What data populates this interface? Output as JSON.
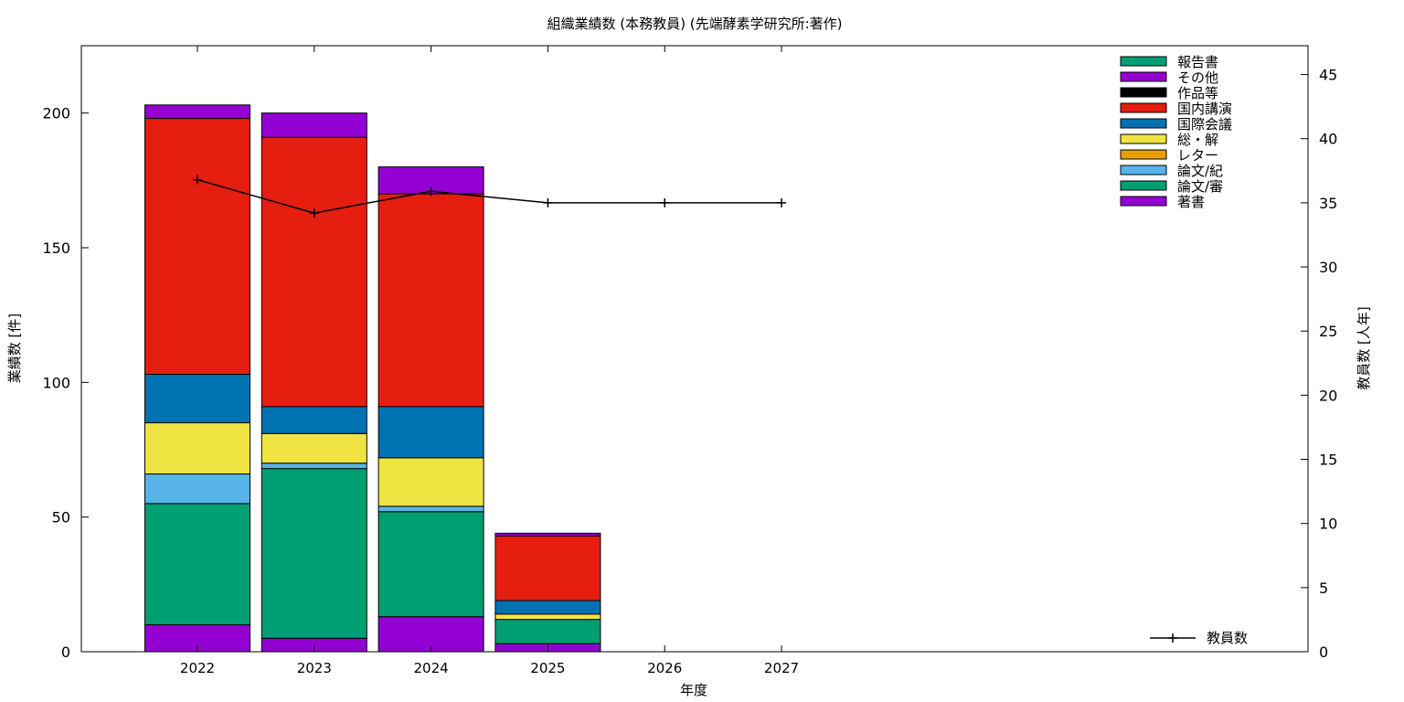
{
  "chart_data": {
    "type": "bar",
    "title": "組織業績数 (本務教員) (先端酵素学研究所:著作)",
    "xlabel": "年度",
    "ylabel": "業績数 [件]",
    "y2label": "教員数 [人年]",
    "categories": [
      "2022",
      "2023",
      "2024",
      "2025",
      "2026",
      "2027"
    ],
    "ylim": [
      0,
      225
    ],
    "yticks": [
      0,
      50,
      100,
      150,
      200
    ],
    "y2lim": [
      0,
      47.25
    ],
    "y2ticks": [
      0,
      5,
      10,
      15,
      20,
      25,
      30,
      35,
      40,
      45
    ],
    "legend_position": "top-right",
    "stacked_series": [
      {
        "name": "著書",
        "color": "#9400d3",
        "values": [
          10,
          5,
          13,
          3,
          0,
          0
        ]
      },
      {
        "name": "論文/審",
        "color": "#009e73",
        "values": [
          45,
          63,
          39,
          9,
          0,
          0
        ]
      },
      {
        "name": "論文/紀",
        "color": "#56b4e9",
        "values": [
          11,
          2,
          2,
          0,
          0,
          0
        ]
      },
      {
        "name": "レター",
        "color": "#e69f00",
        "values": [
          0,
          0,
          0,
          0,
          0,
          0
        ]
      },
      {
        "name": "総・解",
        "color": "#f0e442",
        "values": [
          19,
          11,
          18,
          2,
          0,
          0
        ]
      },
      {
        "name": "国際会議",
        "color": "#0072b2",
        "values": [
          18,
          10,
          19,
          5,
          0,
          0
        ]
      },
      {
        "name": "国内講演",
        "color": "#e51e10",
        "values": [
          95,
          100,
          79,
          24,
          0,
          0
        ]
      },
      {
        "name": "作品等",
        "color": "#000000",
        "values": [
          0,
          0,
          0,
          0,
          0,
          0
        ]
      },
      {
        "name": "その他",
        "color": "#9400d3",
        "values": [
          5,
          9,
          10,
          1,
          0,
          0
        ]
      },
      {
        "name": "報告書",
        "color": "#009e73",
        "values": [
          0,
          0,
          0,
          0,
          0,
          0
        ]
      }
    ],
    "line_series": {
      "name": "教員数",
      "color": "#000000",
      "axis": "right",
      "values": [
        36.8,
        34.2,
        35.9,
        35.0,
        35.0,
        35.0
      ]
    }
  }
}
